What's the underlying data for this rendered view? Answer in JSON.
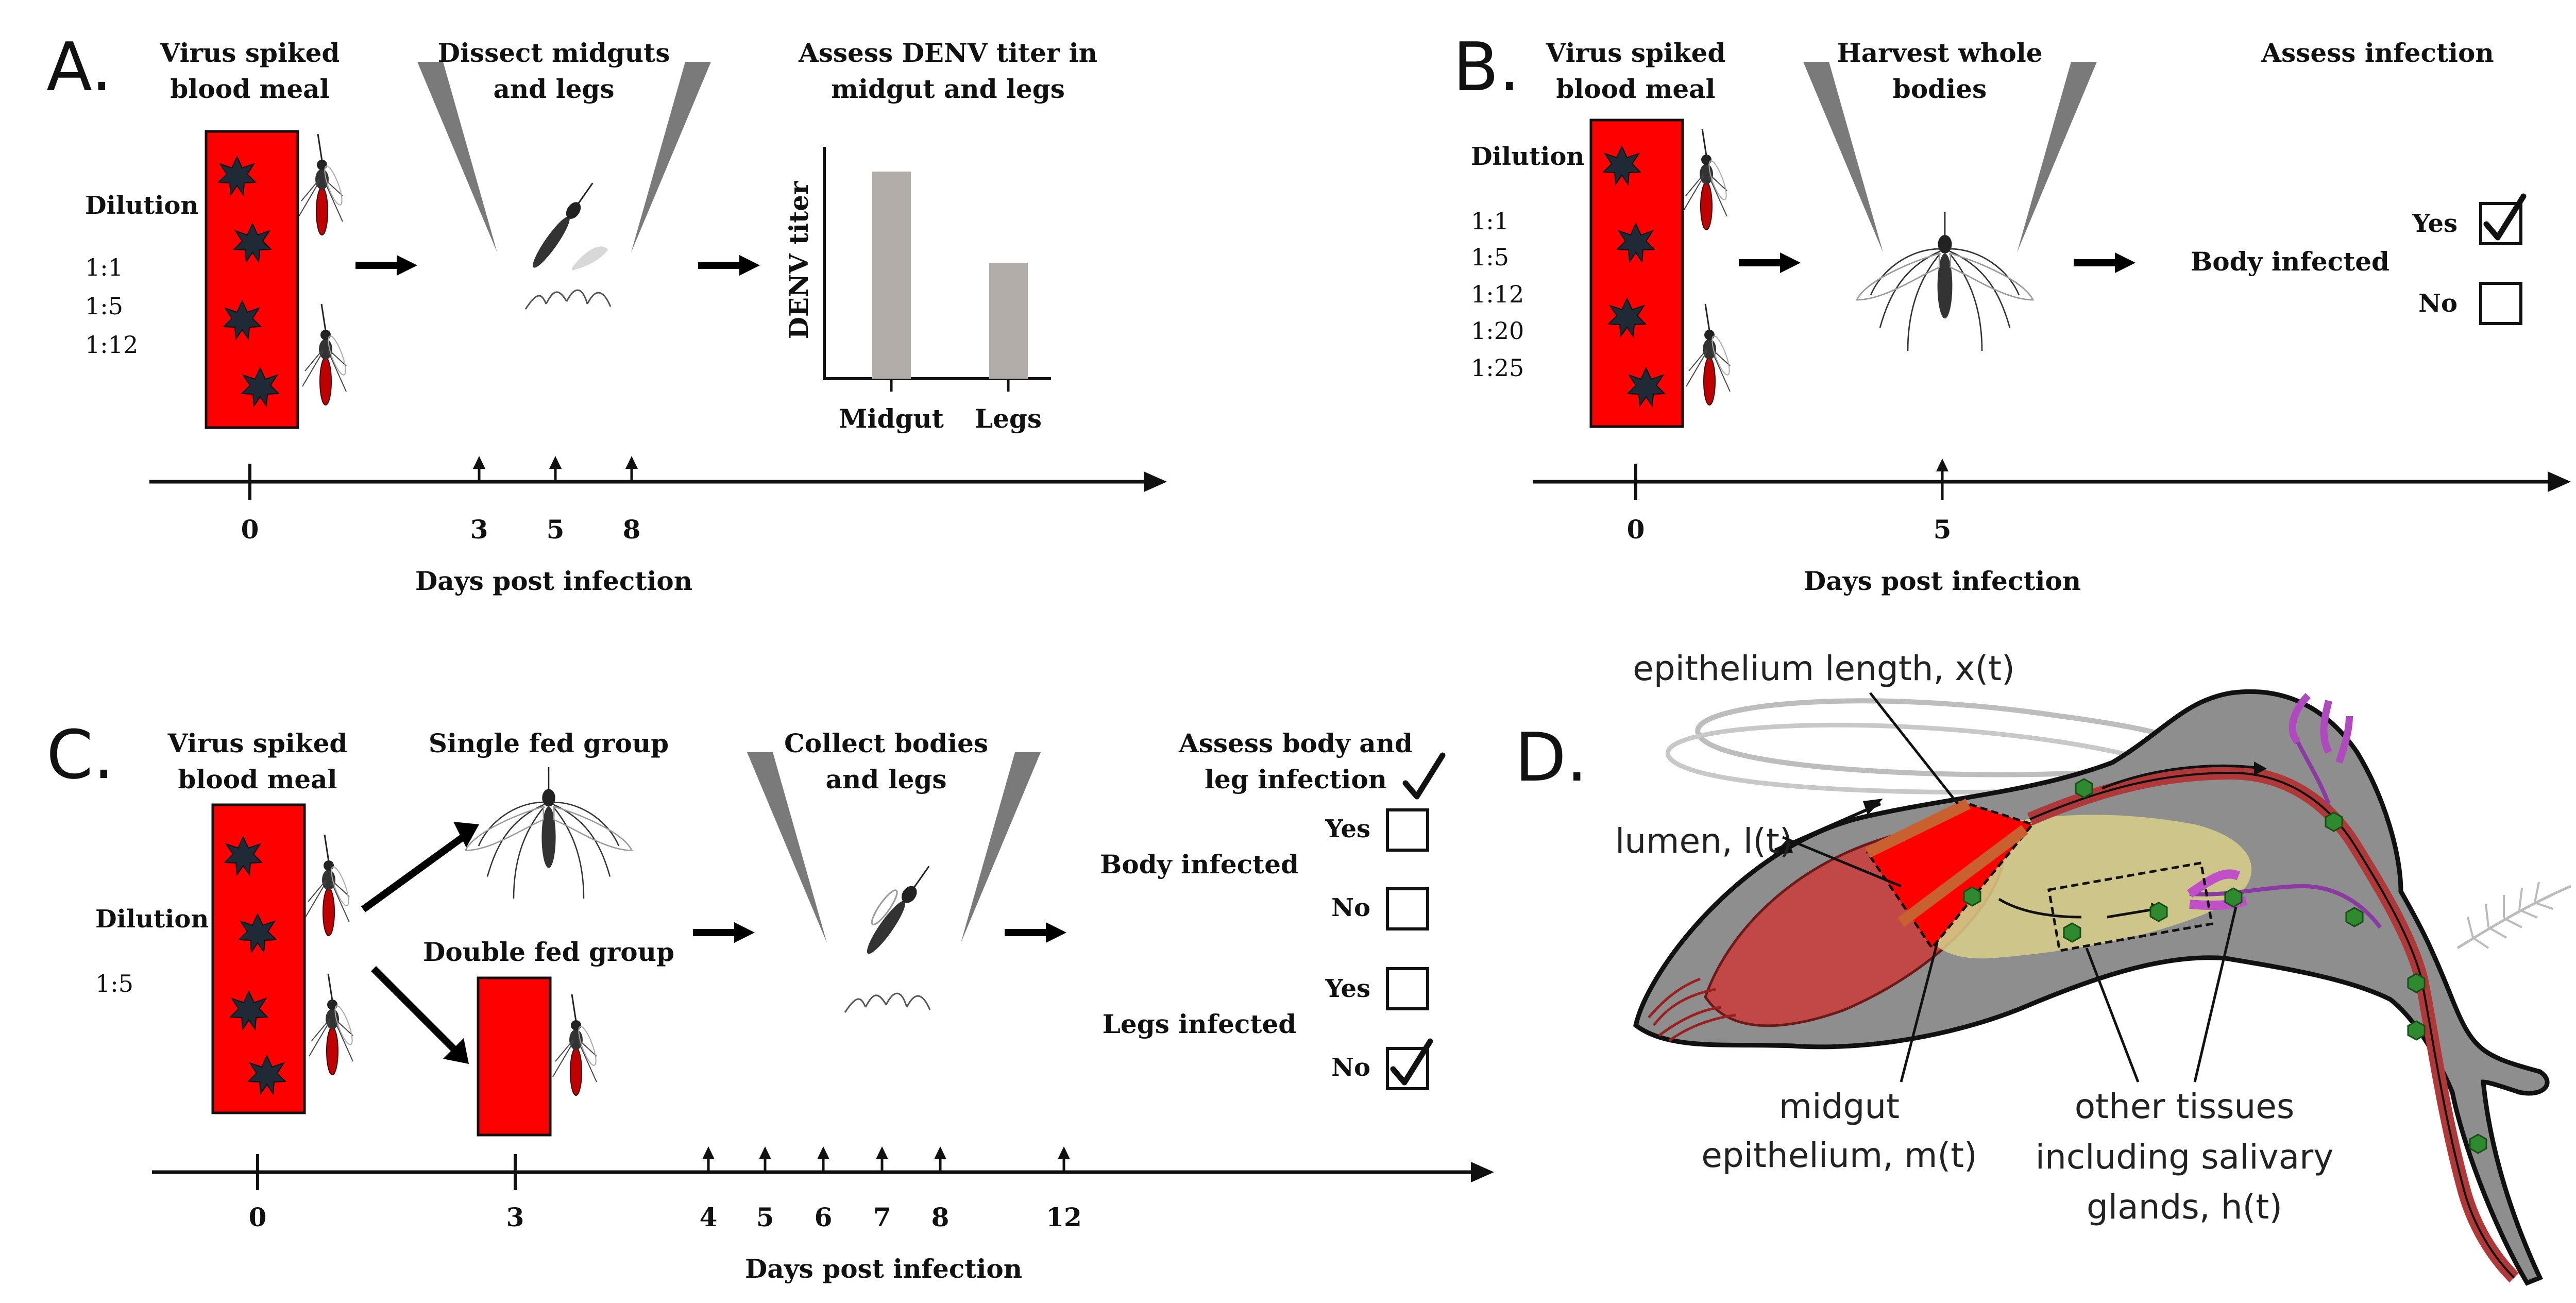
{
  "panels": {
    "A": {
      "letter": "A.",
      "virus_meal": [
        "Virus spiked",
        "blood meal"
      ],
      "dissect": [
        "Dissect midguts",
        "and legs"
      ],
      "assess": [
        "Assess DENV titer in",
        "midgut and legs"
      ],
      "dilution_label": "Dilution",
      "dilutions": [
        "1:1",
        "1:5",
        "1:12"
      ],
      "y_axis_label": "DENV titer",
      "bars": [
        "Midgut",
        "Legs"
      ],
      "days": [
        "0",
        "3",
        "5",
        "8"
      ],
      "timeline_label": "Days post infection"
    },
    "B": {
      "letter": "B.",
      "virus_meal": [
        "Virus spiked",
        "blood meal"
      ],
      "harvest": [
        "Harvest whole",
        "bodies"
      ],
      "assess": "Assess infection",
      "dilution_label": "Dilution",
      "dilutions": [
        "1:1",
        "1:5",
        "1:12",
        "1:20",
        "1:25"
      ],
      "body_infected": "Body infected",
      "yes": "Yes",
      "no": "No",
      "days": [
        "0",
        "5"
      ],
      "timeline_label": "Days post infection"
    },
    "C": {
      "letter": "C.",
      "virus_meal": [
        "Virus spiked",
        "blood meal"
      ],
      "single_fed": "Single fed group",
      "double_fed": "Double fed group",
      "collect": [
        "Collect bodies",
        "and legs"
      ],
      "assess": [
        "Assess body and",
        "leg infection"
      ],
      "dilution_label": "Dilution",
      "dilutions": [
        "1:5"
      ],
      "body_infected": "Body infected",
      "legs_infected": "Legs infected",
      "yes": "Yes",
      "no": "No",
      "days": [
        "0",
        "3",
        "4",
        "5",
        "6",
        "7",
        "8",
        "12"
      ],
      "timeline_label": "Days post infection"
    },
    "D": {
      "letter": "D.",
      "epithelium_length": "epithelium length, x(t)",
      "lumen": "lumen, l(t)",
      "midgut": [
        "midgut",
        "epithelium, m(t)"
      ],
      "other_tissues": [
        "other tissues",
        "including salivary",
        "glands, h(t)"
      ]
    }
  },
  "colors": {
    "blood": "#ff0000",
    "virus": "#1f2a36",
    "bar": "#b3adaa",
    "needle": "#7a7a7a",
    "mosquito_body": "#333333",
    "mosquito_abdomen": "#d40000",
    "tissue_gray": "#8e8e8e",
    "gut_red": "#c24848",
    "yellow_gut": "#d8cf8a",
    "virion_green": "#2f8a2f",
    "gland_purple": "#a24ab0"
  }
}
